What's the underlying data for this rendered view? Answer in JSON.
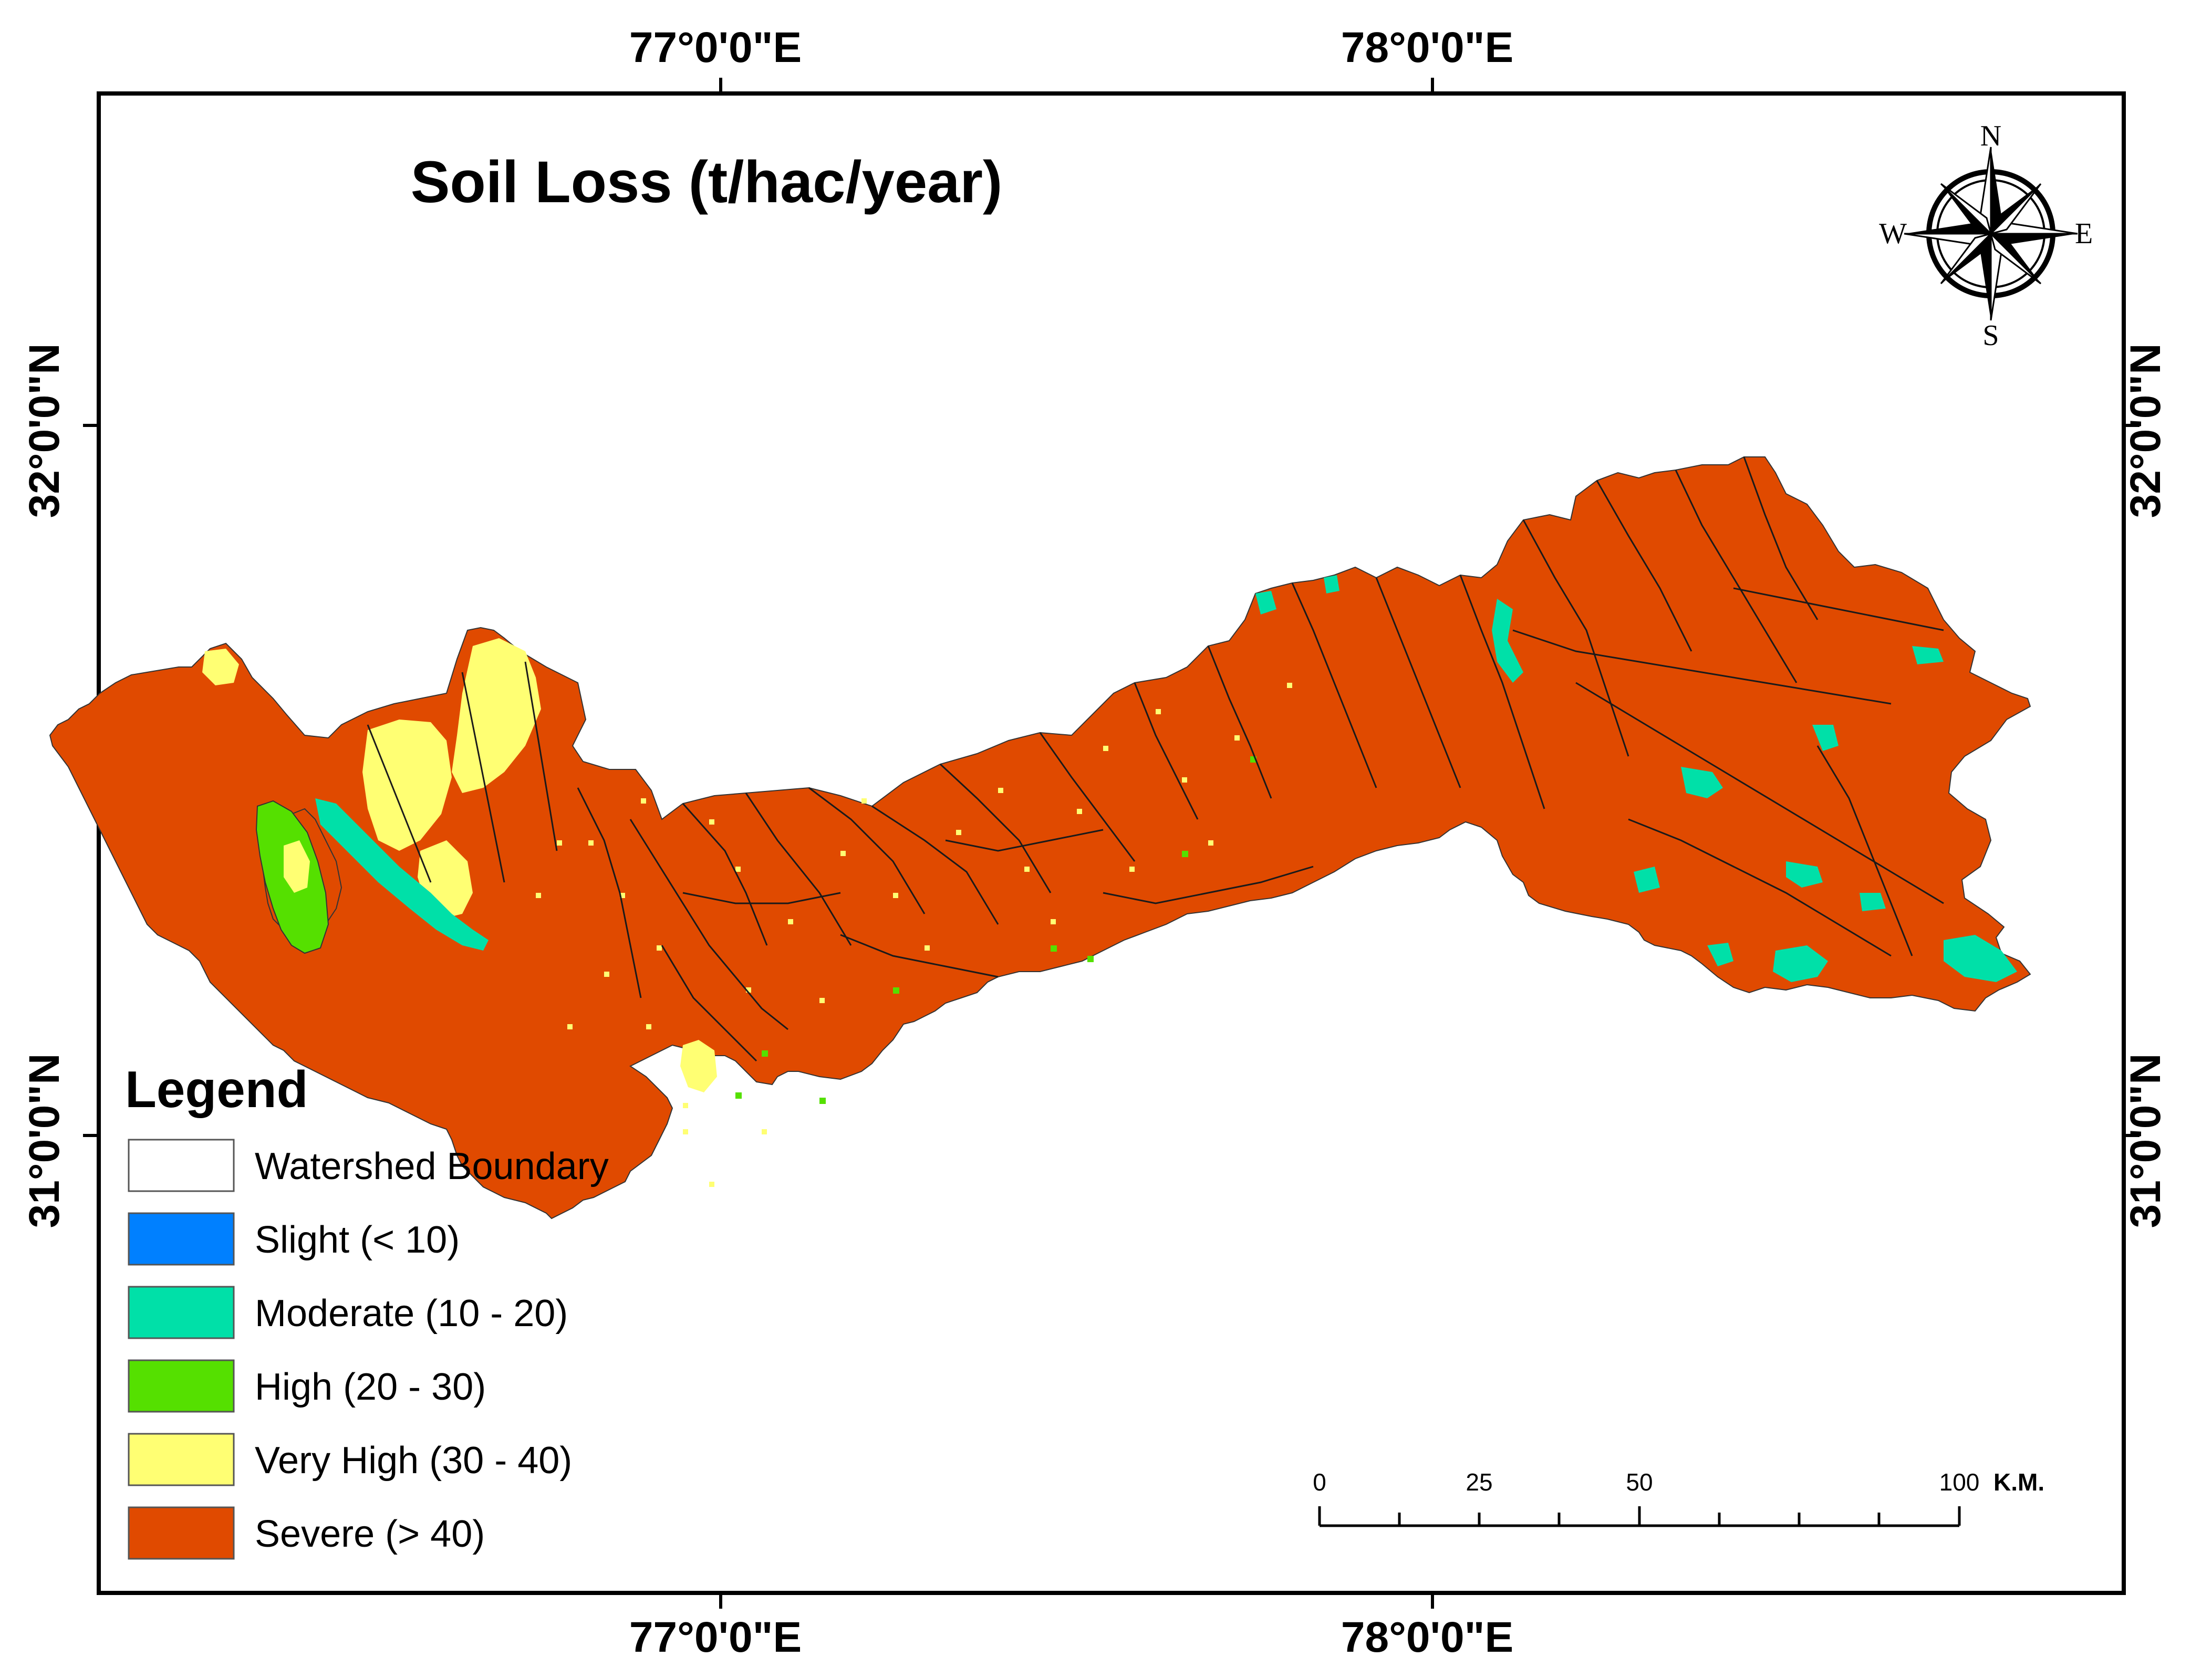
{
  "map": {
    "title": "Soil Loss (t/hac/year)",
    "longitude_labels": [
      "77°0'0\"E",
      "78°0'0\"E"
    ],
    "latitude_labels": [
      "32°0'0\"N",
      "31°0'0\"N"
    ],
    "compass": {
      "north": "N",
      "south": "S",
      "east": "E",
      "west": "W"
    },
    "colors": {
      "frame": "#000000",
      "severe": "#e04a00",
      "very_high": "#ffff73",
      "high": "#55e000",
      "moderate": "#00e0a8",
      "slight": "#0080ff",
      "boundary": "#1a1a1a"
    }
  },
  "legend": {
    "title": "Legend",
    "items": [
      {
        "label": "Watershed Boundary",
        "color": "#ffffff"
      },
      {
        "label": "Slight (< 10)",
        "color": "#0080ff"
      },
      {
        "label": "Moderate (10 - 20)",
        "color": "#00e0a8"
      },
      {
        "label": "High (20 - 30)",
        "color": "#55e000"
      },
      {
        "label": "Very High (30 - 40)",
        "color": "#ffff73"
      },
      {
        "label": "Severe (> 40)",
        "color": "#e04a00"
      }
    ]
  },
  "scale_bar": {
    "labels": [
      "0",
      "25",
      "50",
      "100"
    ],
    "unit": "K.M."
  }
}
